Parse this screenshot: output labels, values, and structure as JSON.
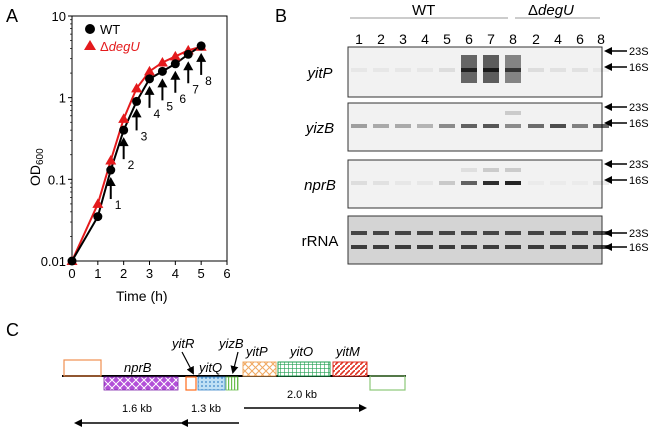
{
  "panel_labels": {
    "a": "A",
    "b": "B",
    "c": "C"
  },
  "chart_data": {
    "type": "line",
    "ylabel": "OD600",
    "ylabel_main": "OD",
    "ylabel_sub": "600",
    "xlabel": "Time (h)",
    "xlim": [
      0,
      6
    ],
    "ylim": [
      0.01,
      10
    ],
    "yscale": "log",
    "x_ticks": [
      "0",
      "1",
      "2",
      "3",
      "4",
      "5",
      "6"
    ],
    "y_ticks": [
      "0.01",
      "0.1",
      "1",
      "10"
    ],
    "legend_placement": "top-left",
    "legend": {
      "wt": "WT",
      "mut_prefix": "Δ",
      "mut_gene": "degU"
    },
    "series": [
      {
        "name": "WT",
        "color": "#000000",
        "marker": "circle",
        "x": [
          0,
          1,
          1.5,
          2,
          2.5,
          3,
          3.5,
          4,
          4.5,
          5
        ],
        "y": [
          0.01,
          0.035,
          0.13,
          0.4,
          0.9,
          1.7,
          2.1,
          2.6,
          3.4,
          4.3
        ]
      },
      {
        "name": "ΔdegU",
        "color": "#e41a1c",
        "marker": "triangle",
        "x": [
          0,
          1,
          1.5,
          2,
          2.5,
          3,
          3.5,
          4,
          4.5,
          5
        ],
        "y": [
          0.01,
          0.05,
          0.17,
          0.55,
          1.3,
          2.1,
          2.7,
          3.2,
          3.8,
          4.2
        ]
      }
    ],
    "arrows": [
      {
        "label": "1",
        "x": 1.5,
        "y": 0.13
      },
      {
        "label": "2",
        "x": 2.0,
        "y": 0.4
      },
      {
        "label": "3",
        "x": 2.5,
        "y": 0.9
      },
      {
        "label": "4",
        "x": 3.0,
        "y": 1.7
      },
      {
        "label": "5",
        "x": 3.5,
        "y": 2.1
      },
      {
        "label": "6",
        "x": 4.0,
        "y": 2.6
      },
      {
        "label": "7",
        "x": 4.5,
        "y": 3.4
      },
      {
        "label": "8",
        "x": 5.0,
        "y": 4.3
      }
    ]
  },
  "blots": {
    "wt_header": "WT",
    "mut_header_prefix": "Δ",
    "mut_header_gene": "degU",
    "wt_lanes": [
      "1",
      "2",
      "3",
      "4",
      "5",
      "6",
      "7",
      "8"
    ],
    "mut_lanes": [
      "2",
      "4",
      "6",
      "8"
    ],
    "panels": [
      {
        "label": "yitP",
        "italic": true
      },
      {
        "label": "yizB",
        "italic": true
      },
      {
        "label": "nprB",
        "italic": true
      },
      {
        "label": "rRNA",
        "italic": false
      }
    ],
    "markers": [
      "23S",
      "16S"
    ]
  },
  "map": {
    "genes": [
      {
        "id": "nprB",
        "label": "nprB",
        "color": "#9b30c8"
      },
      {
        "id": "yitR",
        "label": "yitR",
        "color": "#ff6a1a"
      },
      {
        "id": "yitQ",
        "label": "yitQ",
        "color": "#7ab8e8"
      },
      {
        "id": "yizB",
        "label": "yizB",
        "color": "#6abf4b"
      },
      {
        "id": "yitP",
        "label": "yitP",
        "color": "#f0a860"
      },
      {
        "id": "yitO",
        "label": "yitO",
        "color": "#1fa050"
      },
      {
        "id": "yitM",
        "label": "yitM",
        "color": "#e03020"
      }
    ],
    "transcripts": [
      {
        "label": "1.6 kb"
      },
      {
        "label": "1.3 kb"
      },
      {
        "label": "2.0 kb"
      }
    ]
  }
}
